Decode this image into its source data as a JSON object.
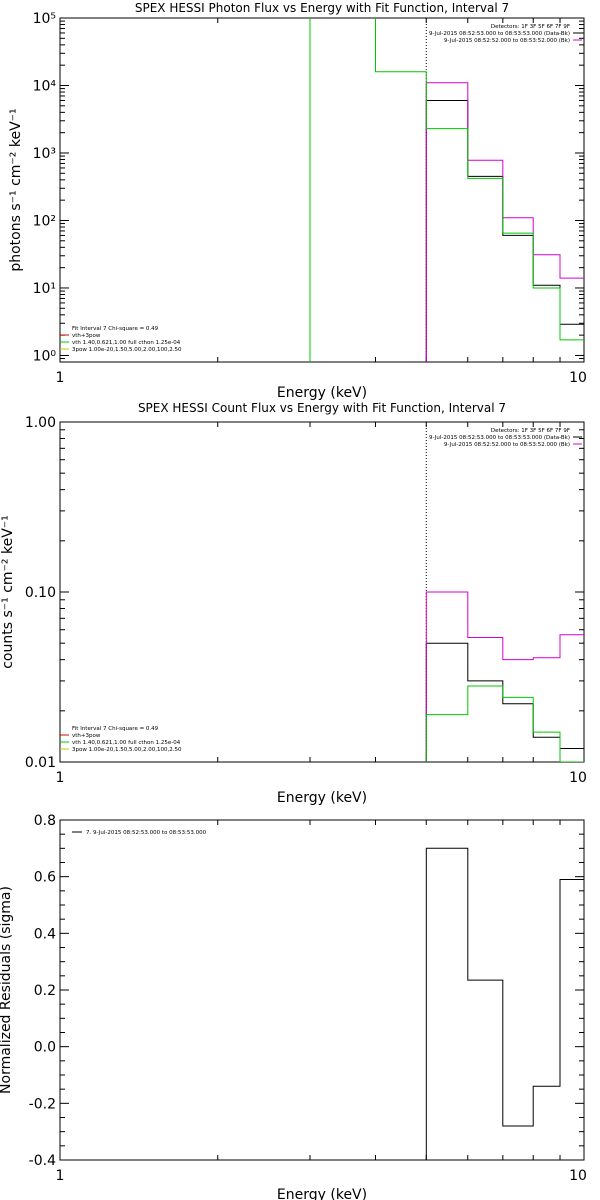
{
  "chart_data": [
    {
      "type": "line",
      "title": "SPEX HESSI Photon Flux vs Energy with Fit Function, Interval 7",
      "xlabel": "Energy (keV)",
      "ylabel": "photons s⁻¹ cm⁻² keV⁻¹",
      "xscale": "log",
      "yscale": "log",
      "xlim": [
        1,
        10
      ],
      "ylim": [
        0.8,
        100000
      ],
      "x_ticks": [
        {
          "v": 1,
          "label": "1"
        },
        {
          "v": 10,
          "label": "10"
        }
      ],
      "y_ticks": [
        {
          "v": 1,
          "label": "10⁰"
        },
        {
          "v": 10,
          "label": "10¹"
        },
        {
          "v": 100,
          "label": "10²"
        },
        {
          "v": 1000,
          "label": "10³"
        },
        {
          "v": 10000,
          "label": "10⁴"
        },
        {
          "v": 100000,
          "label": "10⁵"
        }
      ],
      "vline": 5,
      "legend_tr": {
        "lines": [
          {
            "text": "Detectors: 1F 3F 5F 6F 7F 9F",
            "color": "#000000"
          },
          {
            "text": "9-Jul-2015 08:52:53.000 to 08:53:53.000 (Data-Bk)",
            "color": "#000000"
          },
          {
            "text": "9-Jul-2015 08:52:52.000 to 08:53:52.000 (Bk)",
            "color": "#d400d4"
          }
        ]
      },
      "legend_bl": {
        "lines": [
          {
            "text": "Fit Interval  7    Chi-square = 0.49",
            "color": "#000000"
          },
          {
            "text": "vth+3pow",
            "color": "#d40000"
          },
          {
            "text": "vth 1.40,0.621,1.00  full cthon 1.25e-04",
            "color": "#00c800"
          },
          {
            "text": "3pow 1.00e-20,1.50,5.00,2.00,100,2.50",
            "color": "#c8c800"
          }
        ]
      },
      "series": [
        {
          "name": "Data-Bk",
          "color": "#000000",
          "edges": [
            5,
            6,
            7,
            8,
            9,
            10
          ],
          "values": [
            6000,
            450,
            60,
            11,
            2.9
          ]
        },
        {
          "name": "Bk",
          "color": "#d400d4",
          "edges": [
            5,
            6,
            7,
            8,
            9,
            10
          ],
          "values": [
            11000,
            780,
            110,
            31,
            14
          ]
        },
        {
          "name": "vth+3pow",
          "color": "#00c800",
          "edges": [
            3,
            4,
            5,
            6,
            7,
            8,
            9,
            10
          ],
          "values": [
            200000,
            16000,
            2300,
            420,
            65,
            10,
            1.7
          ]
        }
      ]
    },
    {
      "type": "line",
      "title": "SPEX HESSI Count Flux vs Energy with Fit Function, Interval 7",
      "xlabel": "Energy (keV)",
      "ylabel": "counts s⁻¹ cm⁻² keV⁻¹",
      "xscale": "log",
      "yscale": "log",
      "xlim": [
        1,
        10
      ],
      "ylim": [
        0.01,
        1.0
      ],
      "x_ticks": [
        {
          "v": 1,
          "label": "1"
        },
        {
          "v": 10,
          "label": "10"
        }
      ],
      "y_ticks": [
        {
          "v": 0.01,
          "label": "0.01"
        },
        {
          "v": 0.1,
          "label": "0.10"
        },
        {
          "v": 1.0,
          "label": "1.00"
        }
      ],
      "vline": 5,
      "legend_tr": {
        "lines": [
          {
            "text": "Detectors: 1F 3F 5F 6F 7F 9F",
            "color": "#000000"
          },
          {
            "text": "9-Jul-2015 08:52:53.000 to 08:53:53.000 (Data-Bk)",
            "color": "#000000"
          },
          {
            "text": "9-Jul-2015 08:52:52.000 to 08:53:52.000 (Bk)",
            "color": "#d400d4"
          }
        ]
      },
      "legend_bl": {
        "lines": [
          {
            "text": "Fit Interval  7    Chi-square = 0.49",
            "color": "#000000"
          },
          {
            "text": "vth+3pow",
            "color": "#d40000"
          },
          {
            "text": "vth 1.40,0.621,1.00  full cthon 1.25e-04",
            "color": "#00c800"
          },
          {
            "text": "3pow 1.00e-20,1.50,5.00,2.00,100,2.50",
            "color": "#c8c800"
          }
        ]
      },
      "series": [
        {
          "name": "Data-Bk",
          "color": "#000000",
          "edges": [
            5,
            6,
            7,
            8,
            9,
            10
          ],
          "values": [
            0.05,
            0.03,
            0.022,
            0.014,
            0.012
          ]
        },
        {
          "name": "Bk",
          "color": "#d400d4",
          "edges": [
            5,
            6,
            7,
            8,
            9,
            10
          ],
          "values": [
            0.1,
            0.054,
            0.04,
            0.041,
            0.056
          ]
        },
        {
          "name": "vth+3pow",
          "color": "#00c800",
          "edges": [
            5,
            6,
            7,
            8,
            9,
            10
          ],
          "values": [
            0.019,
            0.028,
            0.024,
            0.015,
            0.01
          ]
        }
      ]
    },
    {
      "type": "line",
      "title": "",
      "xlabel": "Energy (keV)",
      "ylabel": "Normalized Residuals (sigma)",
      "xscale": "log",
      "yscale": "linear",
      "xlim": [
        1,
        10
      ],
      "ylim": [
        -0.4,
        0.8
      ],
      "x_ticks": [
        {
          "v": 1,
          "label": "1"
        },
        {
          "v": 10,
          "label": "10"
        }
      ],
      "y_ticks": [
        {
          "v": -0.4,
          "label": "-0.4"
        },
        {
          "v": -0.2,
          "label": "-0.2"
        },
        {
          "v": 0.0,
          "label": "0.0"
        },
        {
          "v": 0.2,
          "label": "0.2"
        },
        {
          "v": 0.4,
          "label": "0.4"
        },
        {
          "v": 0.6,
          "label": "0.6"
        },
        {
          "v": 0.8,
          "label": "0.8"
        }
      ],
      "vline": null,
      "legend_tl": {
        "lines": [
          {
            "text": "7.  9-Jul-2015 08:52:53.000 to 08:53:53.000",
            "color": "#000000"
          }
        ]
      },
      "series": [
        {
          "name": "7.",
          "color": "#000000",
          "edges": [
            5,
            6,
            7,
            8,
            9,
            10
          ],
          "values": [
            0.7,
            0.235,
            -0.28,
            -0.14,
            0.59
          ]
        }
      ]
    }
  ]
}
